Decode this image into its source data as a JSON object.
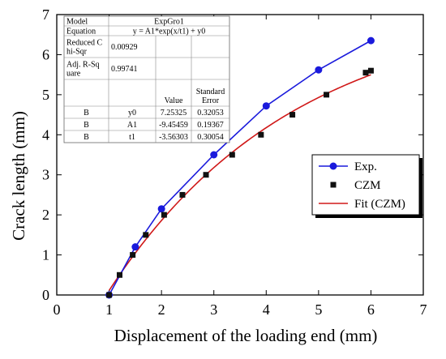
{
  "chart_data": {
    "type": "line",
    "xlabel": "Displacement of the loading end (mm)",
    "ylabel": "Crack length (mm)",
    "xlim": [
      0,
      7
    ],
    "ylim": [
      0,
      7
    ],
    "xticks": [
      "0",
      "1",
      "2",
      "3",
      "4",
      "5",
      "6",
      "7"
    ],
    "yticks": [
      "0",
      "1",
      "2",
      "3",
      "4",
      "5",
      "6",
      "7"
    ],
    "grid": false,
    "legend_position": "right",
    "series": [
      {
        "name": "Exp.",
        "kind": "line+marker",
        "marker": "circle",
        "color": "#1a1adc",
        "x": [
          1.0,
          1.5,
          2.0,
          3.0,
          4.0,
          5.0,
          6.0
        ],
        "y": [
          0.0,
          1.2,
          2.15,
          3.5,
          4.72,
          5.62,
          6.35
        ]
      },
      {
        "name": "CZM",
        "kind": "marker",
        "marker": "square",
        "color": "#111111",
        "x": [
          1.0,
          1.2,
          1.45,
          1.7,
          2.05,
          2.4,
          2.85,
          3.35,
          3.9,
          4.5,
          5.15,
          5.9,
          6.0
        ],
        "y": [
          0.0,
          0.5,
          1.0,
          1.5,
          2.0,
          2.5,
          3.0,
          3.5,
          4.0,
          4.5,
          5.0,
          5.55,
          5.6
        ]
      },
      {
        "name": "Fit (CZM)",
        "kind": "line",
        "color": "#d01818",
        "equation": {
          "y0": 7.25325,
          "A1": -9.45459,
          "t1": -3.56303
        },
        "x_range": [
          1.0,
          6.0
        ]
      }
    ],
    "table": {
      "rows": [
        [
          "Model",
          "ExpGro1",
          "",
          ""
        ],
        [
          "Equation",
          "y = A1*exp(x/t1) + y0",
          "",
          ""
        ],
        [
          "Reduced C\nhi-Sqr",
          "0.00929",
          "",
          ""
        ],
        [
          "Adj. R-Sq\nuare",
          "0.99741",
          "",
          ""
        ],
        [
          "",
          "",
          "Value",
          "Standard\nError"
        ],
        [
          "B",
          "y0",
          "7.25325",
          "0.32053"
        ],
        [
          "B",
          "A1",
          "-9.45459",
          "0.19367"
        ],
        [
          "B",
          "t1",
          "-3.56303",
          "0.30054"
        ]
      ]
    }
  }
}
